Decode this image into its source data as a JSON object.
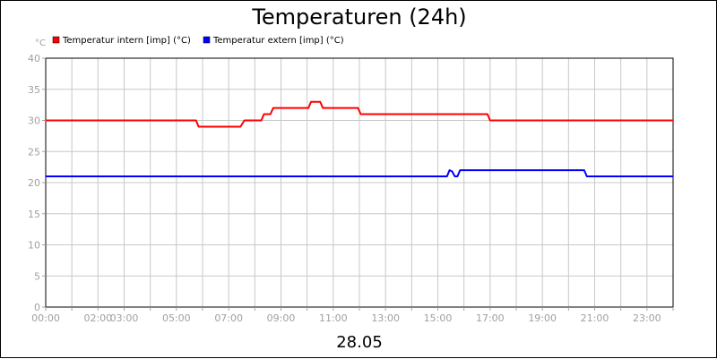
{
  "chart_data": {
    "type": "line",
    "title": "Temperaturen (24h)",
    "subtitle": "28.05",
    "yunit": "°C",
    "ylim": [
      0,
      40
    ],
    "yticks": [
      0,
      5,
      10,
      15,
      20,
      25,
      30,
      35,
      40
    ],
    "xlim_hours": [
      0,
      24
    ],
    "xticks": [
      {
        "h": 0,
        "label": "00:00"
      },
      {
        "h": 2,
        "label": "02:00"
      },
      {
        "h": 3,
        "label": "03:00"
      },
      {
        "h": 5,
        "label": "05:00"
      },
      {
        "h": 7,
        "label": "07:00"
      },
      {
        "h": 9,
        "label": "09:00"
      },
      {
        "h": 11,
        "label": "11:00"
      },
      {
        "h": 13,
        "label": "13:00"
      },
      {
        "h": 15,
        "label": "15:00"
      },
      {
        "h": 17,
        "label": "17:00"
      },
      {
        "h": 19,
        "label": "19:00"
      },
      {
        "h": 21,
        "label": "21:00"
      },
      {
        "h": 23,
        "label": "23:00"
      }
    ],
    "grid": true,
    "legend_position": "top-left",
    "series": [
      {
        "name": "Temperatur intern [imp] (°C)",
        "color": "#ff0000",
        "points": [
          [
            0,
            30
          ],
          [
            5.75,
            30
          ],
          [
            5.85,
            29
          ],
          [
            7.45,
            29
          ],
          [
            7.6,
            30
          ],
          [
            8.25,
            30
          ],
          [
            8.35,
            31
          ],
          [
            8.6,
            31
          ],
          [
            8.7,
            32
          ],
          [
            10.05,
            32
          ],
          [
            10.15,
            33
          ],
          [
            10.5,
            33
          ],
          [
            10.6,
            32
          ],
          [
            11.95,
            32
          ],
          [
            12.05,
            31
          ],
          [
            16.9,
            31
          ],
          [
            17.0,
            30
          ],
          [
            24,
            30
          ]
        ]
      },
      {
        "name": "Temperatur extern [imp] (°C)",
        "color": "#0000ff",
        "points": [
          [
            0,
            21
          ],
          [
            15.35,
            21
          ],
          [
            15.45,
            22
          ],
          [
            15.55,
            21.8
          ],
          [
            15.65,
            21
          ],
          [
            15.75,
            21
          ],
          [
            15.85,
            22
          ],
          [
            20.6,
            22
          ],
          [
            20.7,
            21
          ],
          [
            24,
            21
          ]
        ]
      }
    ]
  }
}
